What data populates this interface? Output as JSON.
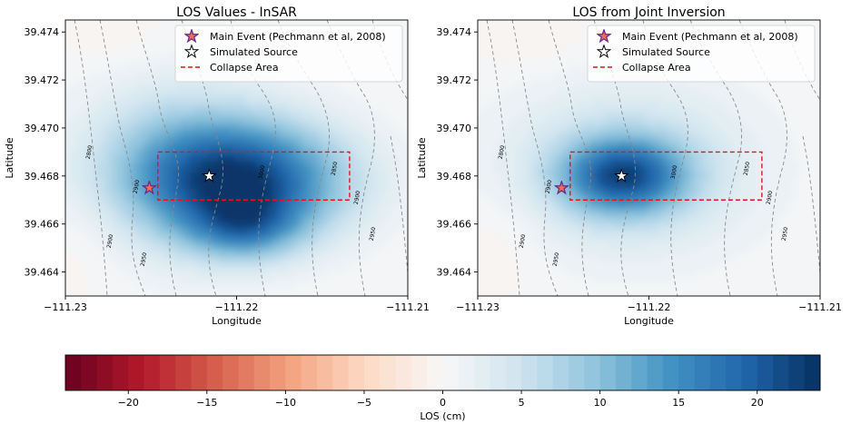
{
  "chart_data": [
    {
      "type": "heatmap",
      "title": "LOS Values - InSAR",
      "xlabel": "Longitude",
      "ylabel": "Latitude",
      "xlim": [
        -111.23,
        -111.21
      ],
      "ylim": [
        39.463,
        39.4745
      ],
      "x_ticks": [
        "−111.23",
        "−111.22",
        "−111.21"
      ],
      "x_tick_values": [
        -111.23,
        -111.22,
        -111.21
      ],
      "y_ticks": [
        "39.464",
        "39.466",
        "39.468",
        "39.470",
        "39.472",
        "39.474"
      ],
      "y_tick_values": [
        39.464,
        39.466,
        39.468,
        39.47,
        39.472,
        39.474
      ],
      "main_event": {
        "lon": -111.2251,
        "lat": 39.4675,
        "color": "#f06b5a"
      },
      "simulated_source": {
        "lon": -111.2216,
        "lat": 39.468,
        "color": "#ffffff"
      },
      "collapse_area": {
        "lon": [
          -111.2246,
          -111.2134
        ],
        "lat": [
          39.467,
          39.469
        ],
        "color": "#e0141e"
      },
      "los_blobs": [
        {
          "lon": -111.2195,
          "lat": 39.4678,
          "peak_cm": 20,
          "sx": 0.0042,
          "sy": 0.0017
        },
        {
          "lon": -111.2195,
          "lat": 39.4658,
          "peak_cm": 9,
          "sx": 0.0022,
          "sy": 0.0009
        },
        {
          "lon": -111.2235,
          "lat": 39.4685,
          "peak_cm": 7,
          "sx": 0.004,
          "sy": 0.0025
        }
      ],
      "contour_labels": [
        "2800",
        "2900",
        "2950",
        "3000",
        "2850",
        "2900",
        "2900",
        "2950"
      ],
      "legend": {
        "position": "upper-right",
        "entries": [
          "Main Event (Pechmann et al, 2008)",
          "Simulated Source",
          "Collapse Area"
        ]
      }
    },
    {
      "type": "heatmap",
      "title": "LOS from Joint Inversion",
      "xlabel": "Longitude",
      "ylabel": "Latitude",
      "xlim": [
        -111.23,
        -111.21
      ],
      "ylim": [
        39.463,
        39.4745
      ],
      "x_ticks": [
        "−111.23",
        "−111.22",
        "−111.21"
      ],
      "x_tick_values": [
        -111.23,
        -111.22,
        -111.21
      ],
      "y_ticks": [
        "39.464",
        "39.466",
        "39.468",
        "39.470",
        "39.472",
        "39.474"
      ],
      "y_tick_values": [
        39.464,
        39.466,
        39.468,
        39.47,
        39.472,
        39.474
      ],
      "main_event": {
        "lon": -111.2251,
        "lat": 39.4675,
        "color": "#f06b5a"
      },
      "simulated_source": {
        "lon": -111.2216,
        "lat": 39.468,
        "color": "#ffffff"
      },
      "collapse_area": {
        "lon": [
          -111.2246,
          -111.2134
        ],
        "lat": [
          39.467,
          39.469
        ],
        "color": "#e0141e"
      },
      "los_blobs": [
        {
          "lon": -111.2215,
          "lat": 39.468,
          "peak_cm": 17,
          "sx": 0.0025,
          "sy": 0.0011
        },
        {
          "lon": -111.2212,
          "lat": 39.4683,
          "peak_cm": 6,
          "sx": 0.0052,
          "sy": 0.0025
        }
      ],
      "contour_labels": [
        "2800",
        "2900",
        "2950",
        "3000",
        "2850",
        "2900",
        "2900",
        "2950"
      ],
      "legend": {
        "position": "upper-right",
        "entries": [
          "Main Event (Pechmann et al, 2008)",
          "Simulated Source",
          "Collapse Area"
        ]
      }
    }
  ],
  "colorbar": {
    "label": "LOS (cm)",
    "range": [
      -24,
      24
    ],
    "levels": 48,
    "ticks": [
      -20,
      -15,
      -10,
      -5,
      0,
      5,
      10,
      15,
      20
    ],
    "tick_labels": [
      "−20",
      "−15",
      "−10",
      "−5",
      "0",
      "5",
      "10",
      "15",
      "20"
    ],
    "colormap": "RdBu",
    "negative_color": "#67001f",
    "zero_color": "#f7f7f7",
    "positive_color": "#053061"
  }
}
